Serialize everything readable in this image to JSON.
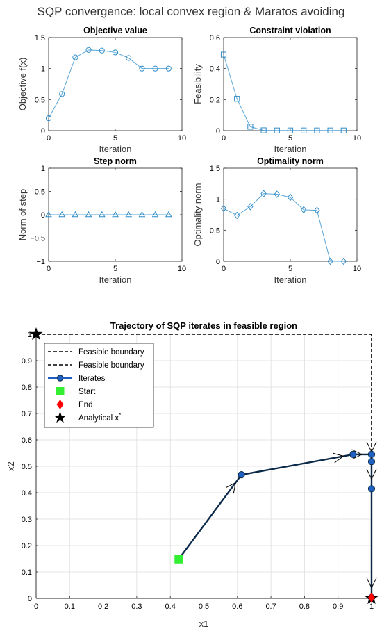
{
  "figure": {
    "suptitle": "SQP convergence: local convex region & Maratos avoiding"
  },
  "chart_data": [
    {
      "type": "line",
      "id": "objective",
      "title": "Objective value",
      "xlabel": "Iteration",
      "ylabel": "Objective f(x)",
      "xlim": [
        0,
        10
      ],
      "ylim": [
        0,
        1.5
      ],
      "xticks": [
        0,
        5,
        10
      ],
      "yticks": [
        0,
        0.5,
        1,
        1.5
      ],
      "ytick_labels": [
        "0",
        "0.5",
        "1",
        "1.5"
      ],
      "marker": "circle",
      "grid": false,
      "x": [
        0,
        1,
        2,
        3,
        4,
        5,
        6,
        7,
        8,
        9
      ],
      "y": [
        0.2,
        0.59,
        1.18,
        1.3,
        1.29,
        1.26,
        1.17,
        1.0,
        1.0,
        1.0
      ]
    },
    {
      "type": "line",
      "id": "feasibility",
      "title": "Constraint violation",
      "xlabel": "Iteration",
      "ylabel": "Feasibility",
      "xlim": [
        0,
        10
      ],
      "ylim": [
        0,
        0.6
      ],
      "xticks": [
        0,
        5,
        10
      ],
      "yticks": [
        0,
        0.2,
        0.4,
        0.6
      ],
      "ytick_labels": [
        "0",
        "0.2",
        "0.4",
        "0.6"
      ],
      "marker": "square",
      "grid": false,
      "x": [
        0,
        1,
        2,
        3,
        4,
        5,
        6,
        7,
        8,
        9
      ],
      "y": [
        0.49,
        0.205,
        0.025,
        0.002,
        0.001,
        0.001,
        0.001,
        0.001,
        0.001,
        0.001
      ]
    },
    {
      "type": "line",
      "id": "step",
      "title": "Step norm",
      "xlabel": "Iteration",
      "ylabel": "Norm of step",
      "xlim": [
        0,
        10
      ],
      "ylim": [
        -1,
        1
      ],
      "xticks": [
        0,
        5,
        10
      ],
      "yticks": [
        -1,
        -0.5,
        0,
        0.5,
        1
      ],
      "ytick_labels": [
        "−1",
        "−0.5",
        "0",
        "0.5",
        "1"
      ],
      "marker": "triangle",
      "grid": false,
      "x": [
        0,
        1,
        2,
        3,
        4,
        5,
        6,
        7,
        8,
        9
      ],
      "y": [
        0,
        0,
        0,
        0,
        0,
        0,
        0,
        0,
        0,
        0
      ]
    },
    {
      "type": "line",
      "id": "optimality",
      "title": "Optimality norm",
      "xlabel": "Iteration",
      "ylabel": "Optimality norm",
      "xlim": [
        0,
        10
      ],
      "ylim": [
        0,
        1.5
      ],
      "xticks": [
        0,
        5,
        10
      ],
      "yticks": [
        0,
        0.5,
        1,
        1.5
      ],
      "ytick_labels": [
        "0",
        "0.5",
        "1",
        "1.5"
      ],
      "marker": "diamond",
      "grid": false,
      "x": [
        0,
        1,
        2,
        3,
        4,
        5,
        6,
        7,
        8,
        9
      ],
      "y": [
        0.85,
        0.74,
        0.88,
        1.09,
        1.08,
        1.03,
        0.83,
        0.82,
        0.0,
        0.0
      ]
    },
    {
      "type": "scatter",
      "id": "trajectory",
      "title": "Trajectory of SQP iterates in feasible region",
      "xlabel": "x1",
      "ylabel": "x2",
      "xlim": [
        0,
        1
      ],
      "ylim": [
        0,
        1
      ],
      "xticks": [
        0,
        0.1,
        0.2,
        0.3,
        0.4,
        0.5,
        0.6,
        0.7,
        0.8,
        0.9,
        1
      ],
      "xtick_labels": [
        "0",
        "0.1",
        "0.2",
        "0.3",
        "0.4",
        "0.5",
        "0.6",
        "0.7",
        "0.8",
        "0.9",
        "1"
      ],
      "yticks": [
        0,
        0.1,
        0.2,
        0.3,
        0.4,
        0.5,
        0.6,
        0.7,
        0.8,
        0.9,
        1
      ],
      "ytick_labels": [
        "0",
        "0.1",
        "0.2",
        "0.3",
        "0.4",
        "0.5",
        "0.6",
        "0.7",
        "0.8",
        "0.9",
        "1"
      ],
      "grid": true,
      "legend_position": "top-left",
      "legend": [
        {
          "label": "Feasible boundary",
          "style": "dashed-line"
        },
        {
          "label": "Feasible boundary",
          "style": "dashed-line"
        },
        {
          "label": "Iterates",
          "style": "line-circle"
        },
        {
          "label": "Start",
          "style": "square"
        },
        {
          "label": "End",
          "style": "diamond"
        },
        {
          "label": "Analytical x",
          "label_sup": "*",
          "style": "star"
        }
      ],
      "boundary": {
        "x": [
          0,
          1,
          1
        ],
        "y": [
          1,
          1,
          0
        ]
      },
      "iterates": {
        "x": [
          0.425,
          0.612,
          0.945,
          1.0,
          1.0,
          1.0,
          1.0
        ],
        "y": [
          0.148,
          0.468,
          0.545,
          0.545,
          0.518,
          0.415,
          0.003
        ]
      },
      "start": {
        "x": 0.425,
        "y": 0.148
      },
      "end": {
        "x": 1.0,
        "y": 0.003
      },
      "analytical": [
        {
          "x": 0.0,
          "y": 1.0
        },
        {
          "x": 1.0,
          "y": 0.0
        }
      ],
      "colors": {
        "line": "#0b2a4a",
        "marker_fill": "#1f5fbf",
        "start": "#33ee33",
        "end": "#ff0000",
        "star": "#000000",
        "boundary": "#000000"
      }
    }
  ],
  "colors": {
    "subplot_line": "#5aa6d6",
    "subplot_marker": "#2f8cc8",
    "text": "#000000",
    "title_text": "#333333",
    "axis": "#222222",
    "grid": "#dedede"
  }
}
